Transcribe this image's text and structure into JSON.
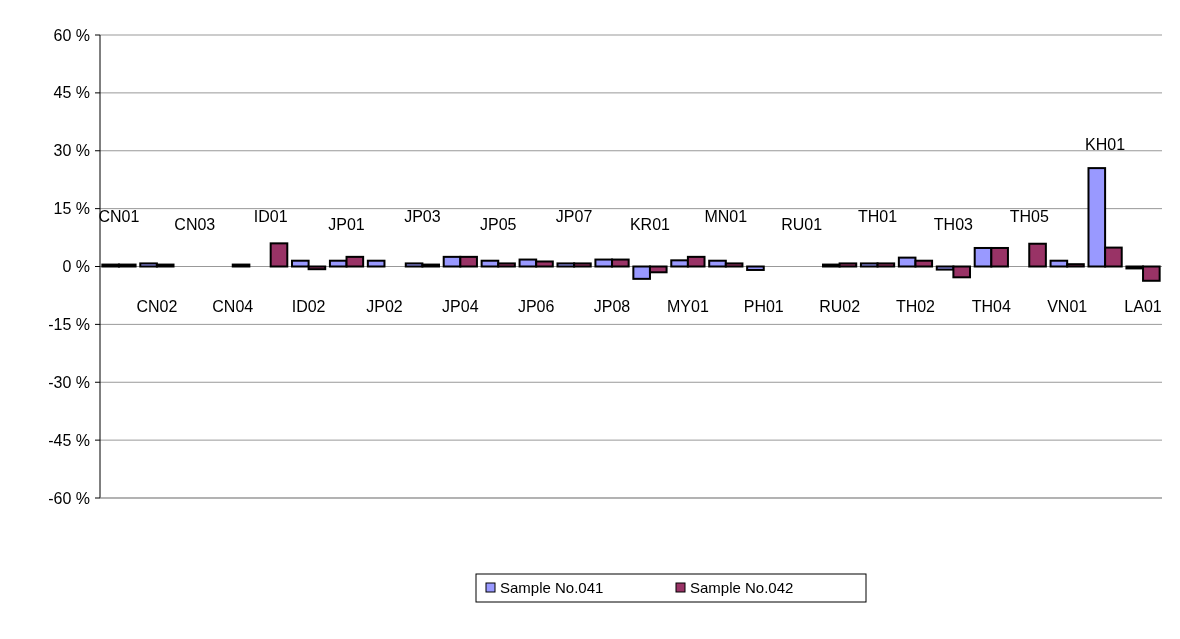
{
  "chart_data": {
    "type": "bar",
    "categories": [
      "CN01",
      "CN02",
      "CN03",
      "CN04",
      "ID01",
      "ID02",
      "JP01",
      "JP02",
      "JP03",
      "JP04",
      "JP05",
      "JP06",
      "JP07",
      "JP08",
      "KR01",
      "MY01",
      "MN01",
      "PH01",
      "RU01",
      "RU02",
      "TH01",
      "TH02",
      "TH03",
      "TH04",
      "TH05",
      "VN01",
      "KH01",
      "LA01"
    ],
    "series": [
      {
        "name": "Sample No.041",
        "color": "#9999ff",
        "values": [
          0.5,
          0.8,
          null,
          null,
          null,
          1.5,
          1.5,
          1.5,
          0.8,
          2.5,
          1.5,
          1.8,
          0.8,
          1.8,
          -3.2,
          1.6,
          1.5,
          -0.9,
          null,
          0.5,
          0.8,
          2.3,
          -0.8,
          4.8,
          null,
          1.5,
          25.5,
          -0.5
        ]
      },
      {
        "name": "Sample No.042",
        "color": "#993366",
        "values": [
          0.5,
          0.5,
          null,
          0.5,
          6.0,
          -0.7,
          2.5,
          null,
          0.5,
          2.5,
          0.8,
          1.3,
          0.8,
          1.8,
          -1.5,
          2.5,
          0.8,
          null,
          null,
          0.8,
          0.8,
          1.5,
          -2.8,
          4.8,
          5.9,
          0.6,
          4.9,
          -3.7
        ]
      }
    ],
    "ylim": [
      -60,
      60
    ],
    "yticks": [
      {
        "value": -60,
        "label": "-60 %"
      },
      {
        "value": -45,
        "label": "-45 %"
      },
      {
        "value": -30,
        "label": "-30 %"
      },
      {
        "value": -15,
        "label": "-15 %"
      },
      {
        "value": 0,
        "label": "0 %"
      },
      {
        "value": 15,
        "label": "15 %"
      },
      {
        "value": 30,
        "label": "30 %"
      },
      {
        "value": 45,
        "label": "45 %"
      },
      {
        "value": 60,
        "label": "60 %"
      }
    ],
    "grid": "y",
    "legend": "bottom"
  }
}
